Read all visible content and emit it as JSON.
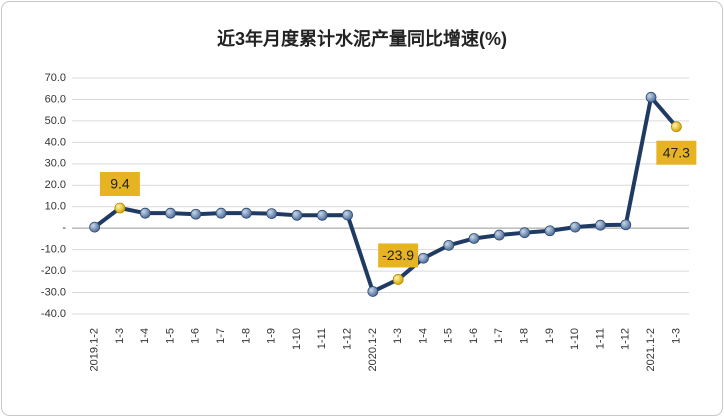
{
  "chart_data": {
    "type": "line",
    "title": "近3年月度累计水泥产量同比增速(%)",
    "categories": [
      "2019.1-2",
      "1-3",
      "1-4",
      "1-5",
      "1-6",
      "1-7",
      "1-8",
      "1-9",
      "1-10",
      "1-11",
      "1-12",
      "2020.1-2",
      "1-3",
      "1-4",
      "1-5",
      "1-6",
      "1-7",
      "1-8",
      "1-9",
      "1-10",
      "1-11",
      "1-12",
      "2021.1-2",
      "1-3"
    ],
    "series": [
      {
        "name": "同比增速",
        "color": "#1f3b63",
        "values": [
          0.5,
          9.4,
          7.0,
          7.0,
          6.5,
          7.0,
          7.0,
          6.8,
          6.0,
          6.0,
          6.1,
          -29.5,
          -23.9,
          -14.0,
          -8.0,
          -4.8,
          -3.2,
          -2.1,
          -1.2,
          0.5,
          1.4,
          1.6,
          61.0,
          47.3
        ],
        "value_labels": [
          null,
          "9.4",
          null,
          null,
          null,
          null,
          null,
          null,
          null,
          null,
          null,
          null,
          "-23.9",
          null,
          null,
          null,
          null,
          null,
          null,
          null,
          null,
          null,
          null,
          "47.3"
        ]
      }
    ],
    "ylim": [
      -40,
      70
    ],
    "yticks": [
      {
        "value": -40,
        "label": "-40.0"
      },
      {
        "value": -30,
        "label": "-30.0"
      },
      {
        "value": -20,
        "label": "-20.0"
      },
      {
        "value": -10,
        "label": "-10.0"
      },
      {
        "value": 0,
        "label": "-"
      },
      {
        "value": 10,
        "label": "10.0"
      },
      {
        "value": 20,
        "label": "20.0"
      },
      {
        "value": 30,
        "label": "30.0"
      },
      {
        "value": 40,
        "label": "40.0"
      },
      {
        "value": 50,
        "label": "50.0"
      },
      {
        "value": 60,
        "label": "60.0"
      },
      {
        "value": 70,
        "label": "70.0"
      }
    ],
    "grid": true
  }
}
